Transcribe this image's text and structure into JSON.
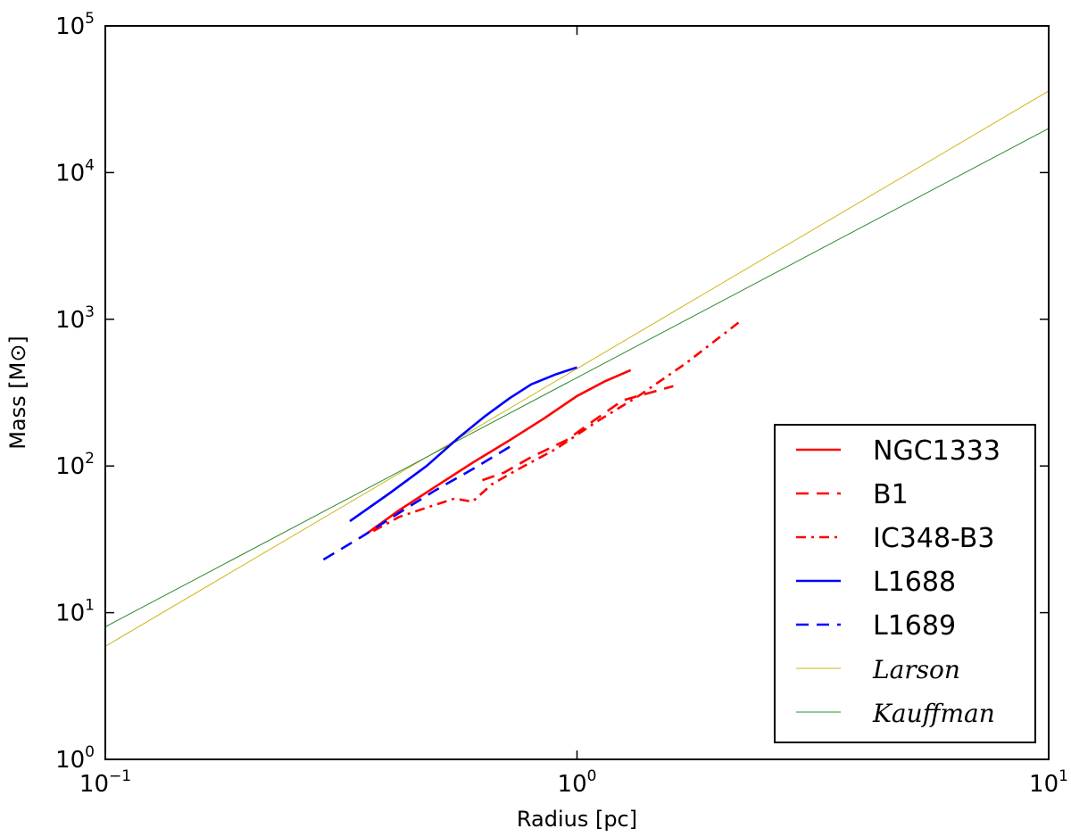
{
  "chart_data": {
    "type": "line",
    "xscale": "log",
    "yscale": "log",
    "xlim": [
      0.1,
      10
    ],
    "ylim": [
      1,
      100000
    ],
    "xlabel": "Radius [pc]",
    "ylabel": "Mass [M⊙]",
    "grid": false,
    "legend_position": "lower-right",
    "x_ticks": [
      {
        "base": "10",
        "exp": "−1",
        "value": 0.1
      },
      {
        "base": "10",
        "exp": "0",
        "value": 1
      },
      {
        "base": "10",
        "exp": "1",
        "value": 10
      }
    ],
    "y_ticks": [
      {
        "base": "10",
        "exp": "0",
        "value": 1
      },
      {
        "base": "10",
        "exp": "1",
        "value": 10
      },
      {
        "base": "10",
        "exp": "2",
        "value": 100
      },
      {
        "base": "10",
        "exp": "3",
        "value": 1000
      },
      {
        "base": "10",
        "exp": "4",
        "value": 10000
      },
      {
        "base": "10",
        "exp": "5",
        "value": 100000
      }
    ],
    "series": [
      {
        "name": "NGC1333",
        "color": "#ff0000",
        "style": "solid",
        "x": [
          0.36,
          0.42,
          0.5,
          0.6,
          0.72,
          0.85,
          1.0,
          1.15,
          1.3
        ],
        "y": [
          35,
          50,
          72,
          105,
          150,
          210,
          300,
          380,
          450
        ]
      },
      {
        "name": "B1",
        "color": "#ff0000",
        "style": "dashed",
        "x": [
          0.63,
          0.7,
          0.8,
          0.95,
          1.1,
          1.25,
          1.4,
          1.6
        ],
        "y": [
          80,
          90,
          115,
          150,
          210,
          280,
          310,
          350
        ]
      },
      {
        "name": "IC348-B3",
        "color": "#ff0000",
        "style": "dashdot",
        "x": [
          0.37,
          0.42,
          0.48,
          0.55,
          0.6,
          0.66,
          0.75,
          0.9,
          1.1,
          1.35,
          1.7,
          2.2
        ],
        "y": [
          36,
          45,
          52,
          60,
          57,
          75,
          95,
          130,
          200,
          300,
          500,
          950
        ]
      },
      {
        "name": "L1688",
        "color": "#0000ff",
        "style": "solid",
        "x": [
          0.33,
          0.4,
          0.48,
          0.56,
          0.64,
          0.72,
          0.8,
          0.9,
          1.0
        ],
        "y": [
          42,
          65,
          100,
          155,
          220,
          290,
          360,
          420,
          470
        ]
      },
      {
        "name": "L1689",
        "color": "#0000ff",
        "style": "dashed",
        "x": [
          0.29,
          0.35,
          0.42,
          0.5,
          0.6,
          0.72
        ],
        "y": [
          23,
          33,
          48,
          68,
          95,
          135
        ]
      },
      {
        "name": "Larson",
        "color": "#cfb61c",
        "style": "thin",
        "x": [
          0.1,
          10
        ],
        "y": [
          5.9,
          36000
        ]
      },
      {
        "name": "Kauffman",
        "color": "#2e8b2e",
        "style": "thin",
        "x": [
          0.1,
          10
        ],
        "y": [
          8.0,
          20000
        ]
      }
    ]
  }
}
